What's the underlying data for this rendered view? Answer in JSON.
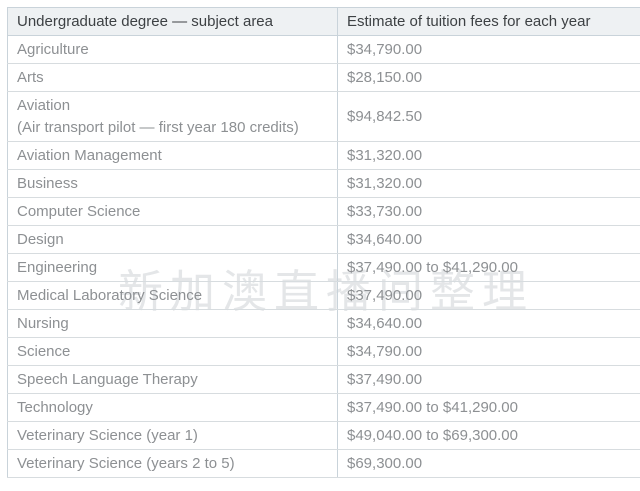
{
  "watermark": {
    "text": "新加澳直播间整理"
  },
  "table": {
    "headers": {
      "subject": "Undergraduate degree — subject area",
      "fee": "Estimate of tuition fees for each year"
    },
    "rows": [
      {
        "subject": "Agriculture",
        "fee": "$34,790.00"
      },
      {
        "subject": "Arts",
        "fee": "$28,150.00"
      },
      {
        "subject": "Aviation\n(Air transport pilot — first year 180 credits)",
        "fee": "$94,842.50"
      },
      {
        "subject": "Aviation Management",
        "fee": "$31,320.00"
      },
      {
        "subject": "Business",
        "fee": "$31,320.00"
      },
      {
        "subject": "Computer Science",
        "fee": "$33,730.00"
      },
      {
        "subject": "Design",
        "fee": "$34,640.00"
      },
      {
        "subject": "Engineering",
        "fee": "$37,490.00 to $41,290.00"
      },
      {
        "subject": "Medical Laboratory Science",
        "fee": "$37,490.00"
      },
      {
        "subject": "Nursing",
        "fee": "$34,640.00"
      },
      {
        "subject": "Science",
        "fee": "$34,790.00"
      },
      {
        "subject": "Speech Language Therapy",
        "fee": "$37,490.00"
      },
      {
        "subject": "Technology",
        "fee": "$37,490.00 to $41,290.00"
      },
      {
        "subject": "Veterinary Science (year 1)",
        "fee": "$49,040.00 to $69,300.00"
      },
      {
        "subject": "Veterinary Science (years 2 to 5)",
        "fee": "$69,300.00"
      }
    ]
  },
  "colors": {
    "border": "#c9d3da",
    "row_separator": "#d7dcdf",
    "header_background": "#eef1f3",
    "header_text": "#3d4144",
    "body_text": "#8d9093",
    "watermark_text": "#9aa3a9"
  }
}
